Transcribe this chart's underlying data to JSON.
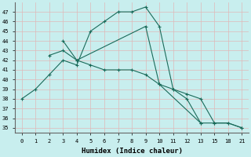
{
  "xlabel": "Humidex (Indice chaleur)",
  "bg_color": "#c8eeee",
  "grid_color": "#e0b8b8",
  "line_color": "#1a6b5a",
  "xlabels": [
    "0",
    "1",
    "2",
    "3",
    "4",
    "5",
    "6",
    "7",
    "8",
    "9",
    "10",
    "11",
    "12",
    "13",
    "15",
    "18",
    "21"
  ],
  "ylim": [
    34.5,
    48
  ],
  "yticks": [
    35,
    36,
    37,
    38,
    39,
    40,
    41,
    42,
    43,
    44,
    45,
    46,
    47
  ],
  "lines": [
    {
      "xi": [
        0,
        1,
        2,
        3,
        4,
        5,
        6,
        7,
        8,
        9,
        10,
        11,
        12,
        13,
        14,
        15,
        16
      ],
      "y": [
        38,
        39,
        40.5,
        42,
        41.5,
        45,
        46,
        47,
        47,
        47.5,
        45.5,
        39,
        38,
        35.5,
        35.5,
        35.5,
        35
      ]
    },
    {
      "xi": [
        2,
        3,
        4,
        5,
        6,
        7,
        8,
        9,
        10,
        11,
        12,
        13,
        14,
        15,
        16
      ],
      "y": [
        42.5,
        43,
        42,
        41.5,
        41,
        41,
        41,
        40.5,
        39.5,
        39,
        38.5,
        38,
        35.5,
        35.5,
        35
      ]
    },
    {
      "xi": [
        3,
        4,
        9,
        10,
        13
      ],
      "y": [
        44,
        42,
        45.5,
        39.5,
        35.5
      ]
    }
  ]
}
